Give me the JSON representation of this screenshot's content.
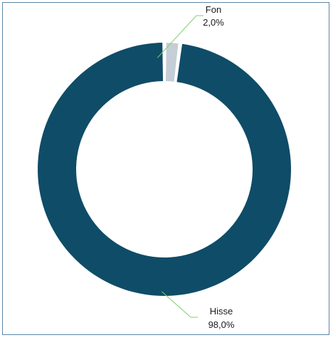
{
  "chart_data": {
    "type": "pie",
    "donut": true,
    "title": "",
    "legend": "none",
    "slices": [
      {
        "label": "Hisse",
        "value": 98.0,
        "display": "98,0%",
        "color": "#0f4c68"
      },
      {
        "label": "Fon",
        "value": 2.0,
        "display": "2,0%",
        "color": "#c5ced6"
      }
    ]
  }
}
